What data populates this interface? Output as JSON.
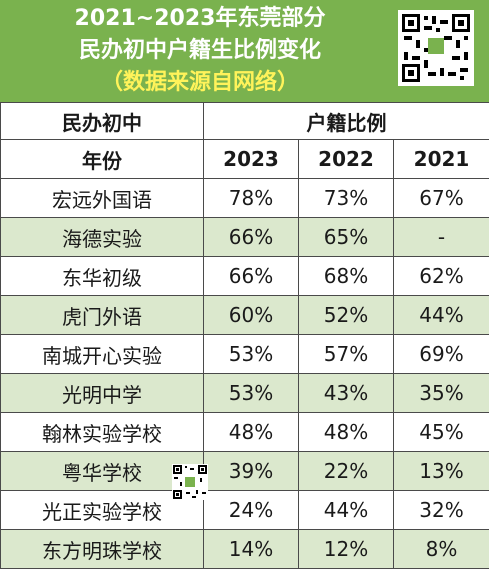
{
  "header": {
    "line1": "2021~2023年东莞部分",
    "line2": "民办初中户籍生比例变化",
    "line3": "（数据来源自网络）"
  },
  "table": {
    "col_school": "民办初中",
    "col_ratio": "户籍比例",
    "col_year_label": "年份",
    "years": [
      "2023",
      "2022",
      "2021"
    ],
    "rows": [
      {
        "school": "宏远外国语",
        "v2023": "78%",
        "v2022": "73%",
        "v2021": "67%"
      },
      {
        "school": "海德实验",
        "v2023": "66%",
        "v2022": "65%",
        "v2021": "-"
      },
      {
        "school": "东华初级",
        "v2023": "66%",
        "v2022": "68%",
        "v2021": "62%"
      },
      {
        "school": "虎门外语",
        "v2023": "60%",
        "v2022": "52%",
        "v2021": "44%"
      },
      {
        "school": "南城开心实验",
        "v2023": "53%",
        "v2022": "57%",
        "v2021": "69%"
      },
      {
        "school": "光明中学",
        "v2023": "53%",
        "v2022": "43%",
        "v2021": "35%"
      },
      {
        "school": "翰林实验学校",
        "v2023": "48%",
        "v2022": "48%",
        "v2021": "45%"
      },
      {
        "school": "粤华学校",
        "v2023": "39%",
        "v2022": "22%",
        "v2021": "13%"
      },
      {
        "school": "光正实验学校",
        "v2023": "24%",
        "v2022": "44%",
        "v2021": "32%"
      },
      {
        "school": "东方明珠学校",
        "v2023": "14%",
        "v2022": "12%",
        "v2021": "8%"
      }
    ]
  },
  "colors": {
    "banner": "#7ab24e",
    "subtitle": "#fff35a",
    "row_alt": "#dbe8cd"
  },
  "icons": [
    "qr-code-icon",
    "qr-code-small-icon"
  ]
}
